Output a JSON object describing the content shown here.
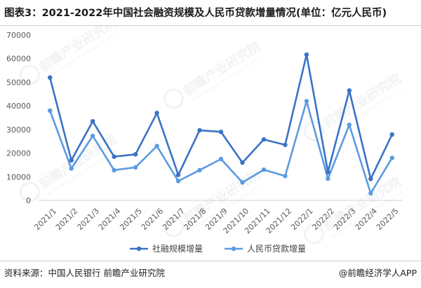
{
  "header": {
    "title": "图表3：2021-2022年中国社会融资规模及人民币贷款增量情况(单位：亿元人民币)"
  },
  "footer": {
    "source": "资料来源：中国人民银行 前瞻产业研究院",
    "brand": "@前瞻经济学人APP"
  },
  "watermark": {
    "text": "前瞻产业研究院",
    "sub": "QIANZHAN INDUSTRY RESEARCH INSTITUTE"
  },
  "chart_data": {
    "type": "line",
    "categories": [
      "2021/1",
      "2021/2",
      "2021/3",
      "2021/4",
      "2021/5",
      "2021/6",
      "2021/7",
      "2021/8",
      "2021/9",
      "2021/10",
      "2021/11",
      "2021/12",
      "2022/1",
      "2022/2",
      "2022/3",
      "2022/4",
      "2022/5"
    ],
    "series": [
      {
        "name": "社融规模增量",
        "color": "#3a73c4",
        "values": [
          52000,
          17000,
          33500,
          18500,
          19500,
          37000,
          10800,
          29700,
          29000,
          16000,
          25800,
          23500,
          61700,
          12000,
          46500,
          9100,
          27900
        ]
      },
      {
        "name": "人民币贷款增量",
        "color": "#5b9be0",
        "values": [
          38000,
          13500,
          27300,
          12800,
          14000,
          23000,
          8200,
          12800,
          17500,
          7600,
          13000,
          10300,
          42000,
          9200,
          32000,
          3000,
          18000
        ]
      }
    ],
    "ylim": [
      0,
      70000
    ],
    "yticks": [
      0,
      10000,
      20000,
      30000,
      40000,
      50000,
      60000,
      70000
    ],
    "grid": false,
    "legend_position": "bottom"
  }
}
